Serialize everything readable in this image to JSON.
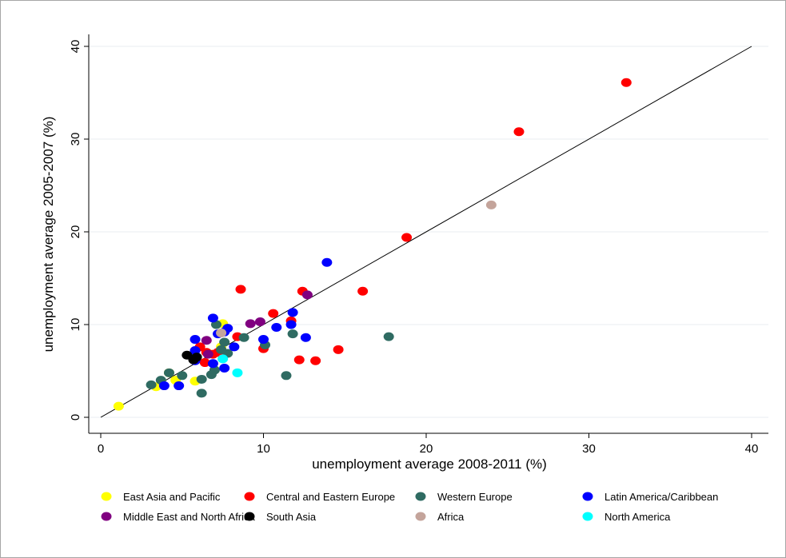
{
  "chart_data": {
    "type": "scatter",
    "xlabel": "unemployment average 2008-2011 (%)",
    "ylabel": "unemployment average 2005-2007 (%)",
    "xlim": [
      0,
      40
    ],
    "ylim": [
      0,
      40
    ],
    "x_ticks": [
      "0",
      "10",
      "20",
      "30",
      "40"
    ],
    "y_ticks": [
      "0",
      "10",
      "20",
      "30",
      "40"
    ],
    "grid": "horizontal",
    "reference_line": "45-degree line",
    "legend_position": "bottom",
    "series": [
      {
        "name": "East Asia and Pacific",
        "color": "#ffff00",
        "points": [
          [
            1.1,
            1.2
          ],
          [
            3.4,
            3.3
          ],
          [
            4.2,
            4.8
          ],
          [
            4.6,
            4.0
          ],
          [
            5.8,
            3.9
          ],
          [
            7.4,
            7.6
          ],
          [
            7.5,
            10.1
          ],
          [
            6.6,
            6.9
          ]
        ]
      },
      {
        "name": "Central and Eastern Europe",
        "color": "#ff0000",
        "points": [
          [
            32.3,
            36.1
          ],
          [
            25.7,
            30.8
          ],
          [
            18.8,
            19.4
          ],
          [
            16.1,
            13.6
          ],
          [
            14.6,
            7.3
          ],
          [
            13.2,
            6.1
          ],
          [
            12.2,
            6.2
          ],
          [
            12.4,
            13.6
          ],
          [
            11.7,
            10.4
          ],
          [
            10.6,
            11.2
          ],
          [
            10.0,
            7.4
          ],
          [
            8.6,
            13.8
          ],
          [
            8.4,
            8.7
          ],
          [
            7.2,
            7.0
          ],
          [
            6.4,
            5.9
          ],
          [
            6.1,
            7.6
          ],
          [
            6.9,
            6.8
          ],
          [
            6.5,
            7.0
          ]
        ]
      },
      {
        "name": "Western Europe",
        "color": "#2f6b62",
        "points": [
          [
            17.7,
            8.7
          ],
          [
            11.8,
            9.0
          ],
          [
            11.4,
            4.5
          ],
          [
            10.1,
            7.8
          ],
          [
            8.8,
            8.6
          ],
          [
            7.6,
            8.1
          ],
          [
            7.8,
            6.9
          ],
          [
            7.1,
            10.0
          ],
          [
            7.0,
            5.1
          ],
          [
            6.8,
            4.6
          ],
          [
            6.2,
            4.1
          ],
          [
            6.2,
            2.6
          ],
          [
            5.0,
            4.5
          ],
          [
            4.2,
            4.8
          ],
          [
            3.7,
            4.0
          ],
          [
            3.1,
            3.5
          ],
          [
            5.8,
            6.5
          ],
          [
            7.4,
            7.3
          ]
        ]
      },
      {
        "name": "Latin America/Caribbean",
        "color": "#0000ff",
        "points": [
          [
            13.9,
            16.7
          ],
          [
            11.8,
            11.3
          ],
          [
            11.7,
            10.0
          ],
          [
            12.6,
            8.6
          ],
          [
            10.8,
            9.7
          ],
          [
            10.0,
            8.4
          ],
          [
            8.2,
            7.6
          ],
          [
            7.8,
            9.6
          ],
          [
            7.6,
            9.2
          ],
          [
            6.9,
            10.7
          ],
          [
            7.2,
            9.0
          ],
          [
            5.8,
            8.4
          ],
          [
            5.8,
            7.2
          ],
          [
            6.9,
            5.8
          ],
          [
            7.6,
            5.3
          ],
          [
            4.8,
            3.4
          ],
          [
            3.9,
            3.4
          ],
          [
            5.8,
            6.1
          ]
        ]
      },
      {
        "name": "Middle East and North Africa",
        "color": "#800080",
        "points": [
          [
            12.7,
            13.2
          ],
          [
            9.8,
            10.3
          ],
          [
            9.2,
            10.1
          ],
          [
            6.5,
            8.3
          ],
          [
            6.6,
            6.8
          ]
        ]
      },
      {
        "name": "South Asia",
        "color": "#000000",
        "points": [
          [
            5.3,
            6.7
          ],
          [
            5.7,
            6.2
          ],
          [
            5.9,
            6.5
          ]
        ]
      },
      {
        "name": "Africa",
        "color": "#c4a49b",
        "points": [
          [
            24.0,
            22.9
          ],
          [
            7.4,
            9.1
          ]
        ]
      },
      {
        "name": "North America",
        "color": "#00ffff",
        "points": [
          [
            8.4,
            4.8
          ],
          [
            7.5,
            6.3
          ]
        ]
      }
    ]
  }
}
